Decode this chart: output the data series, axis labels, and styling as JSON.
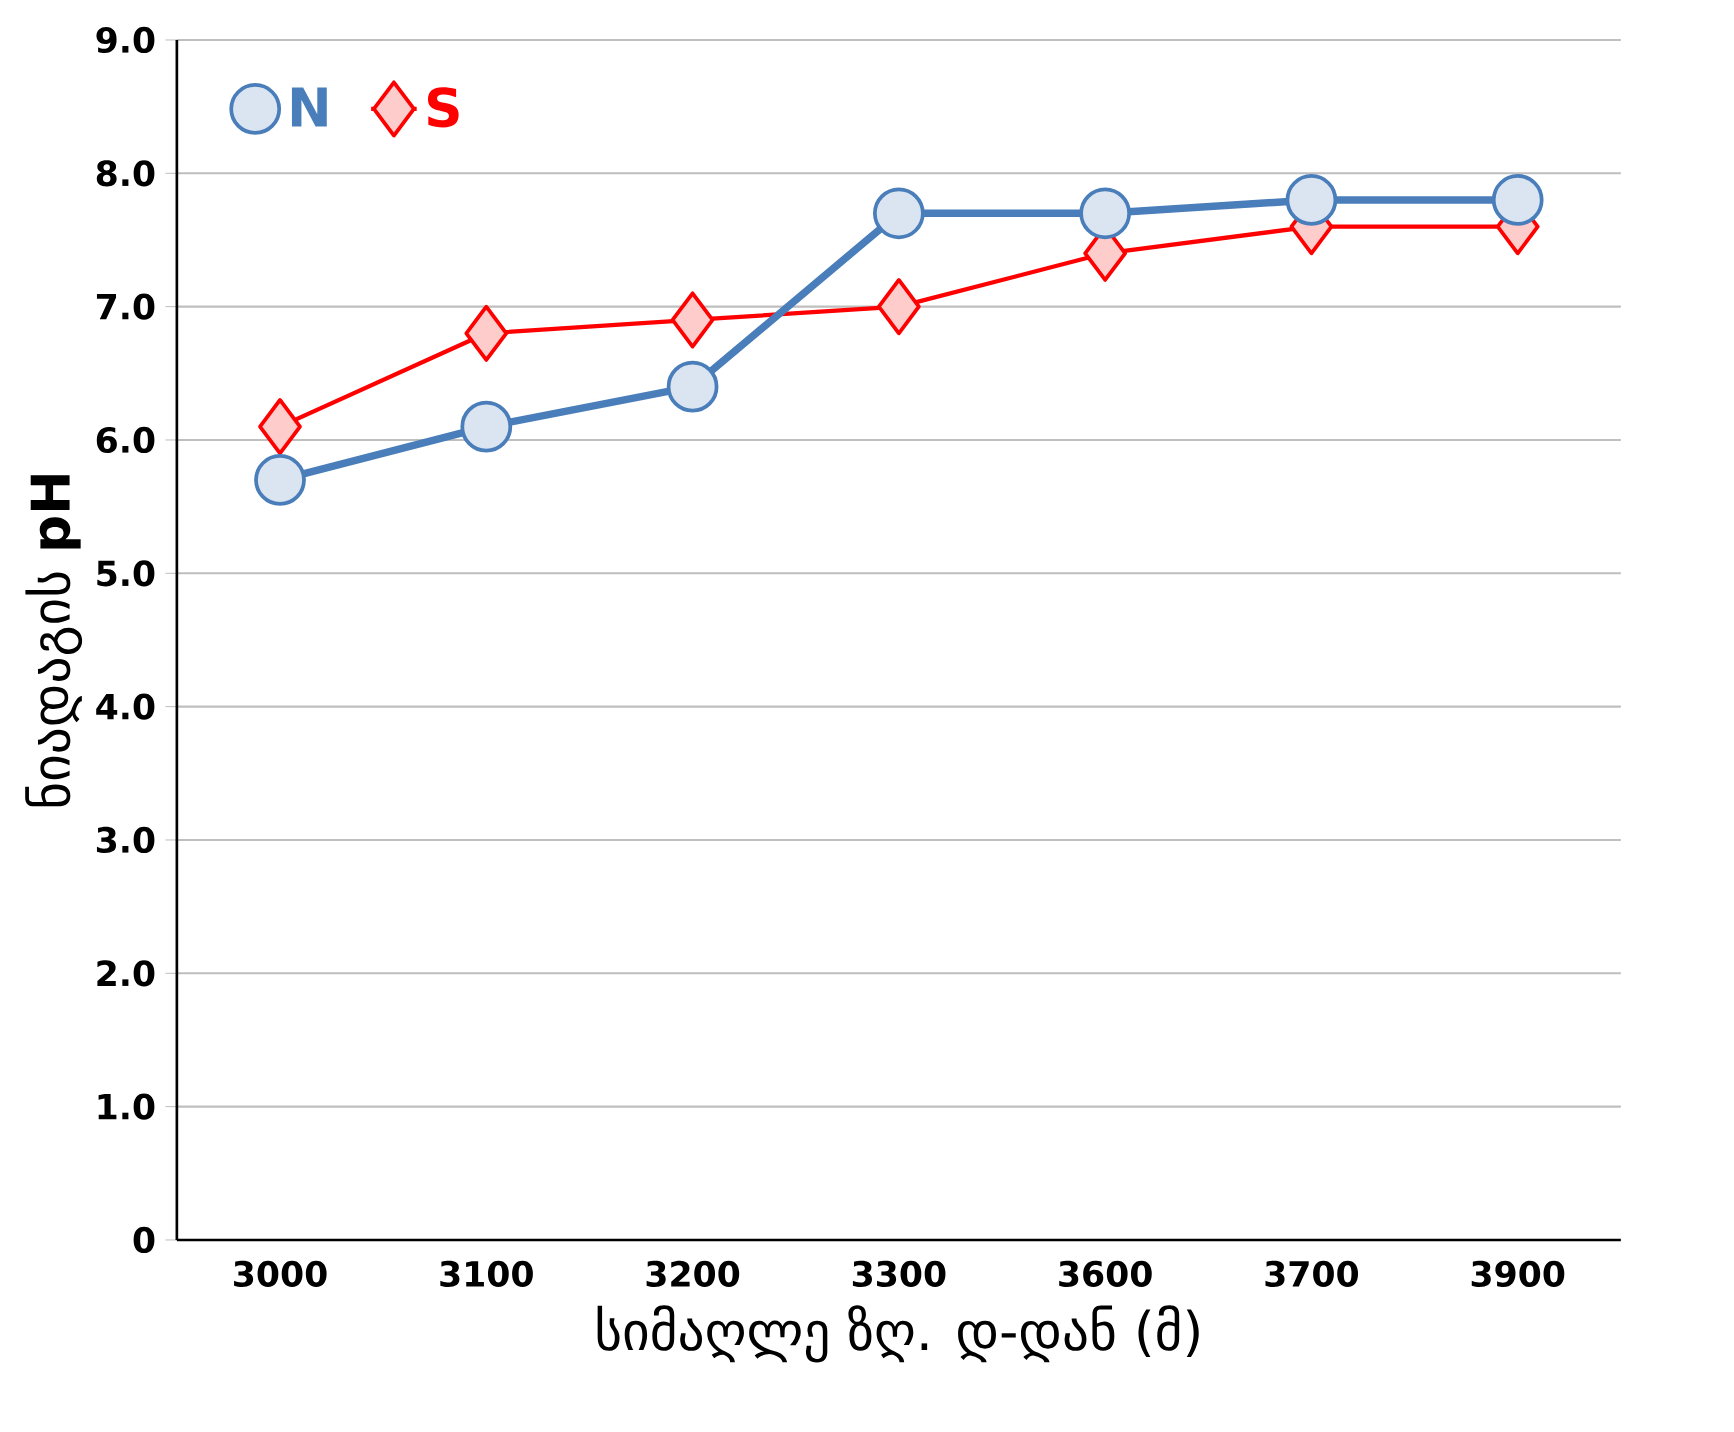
{
  "chart_data": {
    "type": "line",
    "xlabel": "სიმაღლე ზღ. დ-დან (მ)",
    "ylabel": "ნიადაგის **pH**",
    "categories": [
      "3000",
      "3100",
      "3200",
      "3300",
      "3600",
      "3700",
      "3900"
    ],
    "series": [
      {
        "name": "N",
        "color": "#4a7ebb",
        "marker": "circle",
        "values": [
          5.7,
          6.1,
          6.4,
          7.7,
          7.7,
          7.8,
          7.8
        ]
      },
      {
        "name": "S",
        "color": "#ff0000",
        "marker": "diamond",
        "values": [
          6.1,
          6.8,
          6.9,
          7.0,
          7.4,
          7.6,
          7.6
        ]
      }
    ],
    "ylim": [
      0,
      9
    ],
    "yticks": [
      {
        "value": 0,
        "label": "0"
      },
      {
        "value": 1,
        "label": "1.0"
      },
      {
        "value": 2,
        "label": "2.0"
      },
      {
        "value": 3,
        "label": "3.0"
      },
      {
        "value": 4,
        "label": "4.0"
      },
      {
        "value": 5,
        "label": "5.0"
      },
      {
        "value": 6,
        "label": "6.0"
      },
      {
        "value": 7,
        "label": "7.0"
      },
      {
        "value": 8,
        "label": "8.0"
      },
      {
        "value": 9,
        "label": "9.0"
      }
    ],
    "grid": "y",
    "legend": "top left",
    "line_style": "solid"
  }
}
